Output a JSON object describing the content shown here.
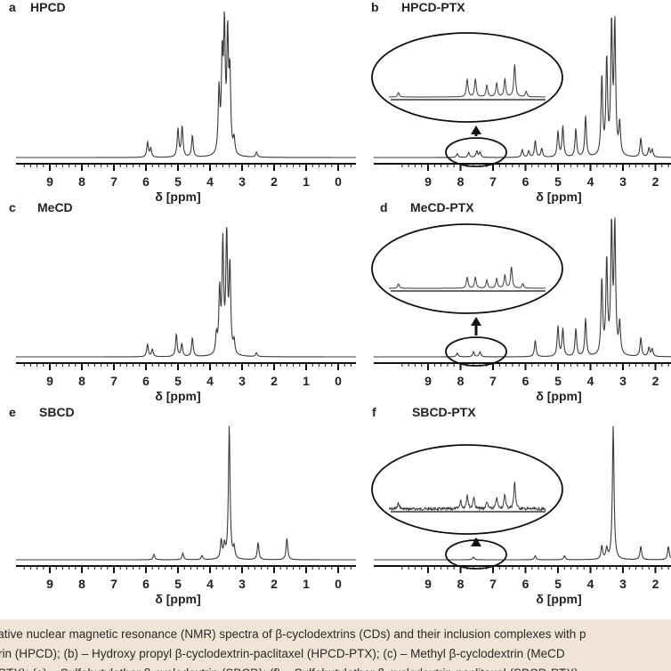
{
  "figure": {
    "line_color": "#3a3a3a",
    "background": "#ffffff",
    "caption_background": "#efe4d6"
  },
  "chart_data": [
    {
      "type": "line",
      "panel": "a",
      "title": "HPCD",
      "xlabel": "δ [ppm]",
      "xlim": [
        10,
        -0.5
      ],
      "x_reversed": true,
      "xticks": [
        "9",
        "8",
        "7",
        "6",
        "5",
        "4",
        "3",
        "2",
        "1",
        "0"
      ],
      "grid": false,
      "peaks": [
        {
          "ppm": 5.95,
          "height": 0.12
        },
        {
          "ppm": 5.85,
          "height": 0.07
        },
        {
          "ppm": 5.0,
          "height": 0.22
        },
        {
          "ppm": 4.87,
          "height": 0.24
        },
        {
          "ppm": 4.55,
          "height": 0.17
        },
        {
          "ppm": 3.72,
          "height": 0.5
        },
        {
          "ppm": 3.62,
          "height": 0.72
        },
        {
          "ppm": 3.55,
          "height": 0.95
        },
        {
          "ppm": 3.45,
          "height": 0.9
        },
        {
          "ppm": 3.38,
          "height": 0.6
        },
        {
          "ppm": 3.25,
          "height": 0.12
        },
        {
          "ppm": 2.55,
          "height": 0.04
        }
      ],
      "inset": false
    },
    {
      "type": "line",
      "panel": "b",
      "title": "HPCD-PTX",
      "xlabel": "δ [ppm]",
      "xlim": [
        10,
        1.5
      ],
      "x_reversed": true,
      "xticks": [
        "9",
        "8",
        "7",
        "6",
        "5",
        "4",
        "3",
        "2"
      ],
      "grid": false,
      "peaks": [
        {
          "ppm": 8.1,
          "height": 0.03
        },
        {
          "ppm": 7.75,
          "height": 0.04
        },
        {
          "ppm": 7.5,
          "height": 0.05
        },
        {
          "ppm": 7.4,
          "height": 0.04
        },
        {
          "ppm": 6.1,
          "height": 0.06
        },
        {
          "ppm": 5.9,
          "height": 0.05
        },
        {
          "ppm": 5.7,
          "height": 0.13
        },
        {
          "ppm": 5.5,
          "height": 0.07
        },
        {
          "ppm": 5.0,
          "height": 0.2
        },
        {
          "ppm": 4.85,
          "height": 0.24
        },
        {
          "ppm": 4.45,
          "height": 0.22
        },
        {
          "ppm": 4.15,
          "height": 0.32
        },
        {
          "ppm": 3.65,
          "height": 0.62
        },
        {
          "ppm": 3.5,
          "height": 0.75
        },
        {
          "ppm": 3.35,
          "height": 1.02
        },
        {
          "ppm": 3.25,
          "height": 1.02
        },
        {
          "ppm": 3.1,
          "height": 0.25
        },
        {
          "ppm": 2.45,
          "height": 0.15
        },
        {
          "ppm": 2.2,
          "height": 0.07
        },
        {
          "ppm": 2.1,
          "height": 0.06
        }
      ],
      "inset": true,
      "inset_peaks": [
        {
          "x": 0.08,
          "height": 0.12
        },
        {
          "x": 0.5,
          "height": 0.48
        },
        {
          "x": 0.55,
          "height": 0.48
        },
        {
          "x": 0.62,
          "height": 0.32
        },
        {
          "x": 0.68,
          "height": 0.38
        },
        {
          "x": 0.73,
          "height": 0.48
        },
        {
          "x": 0.79,
          "height": 0.88
        },
        {
          "x": 0.86,
          "height": 0.15
        }
      ]
    },
    {
      "type": "line",
      "panel": "c",
      "title": "MeCD",
      "xlabel": "δ [ppm]",
      "xlim": [
        10,
        -0.5
      ],
      "x_reversed": true,
      "xticks": [
        "9",
        "8",
        "7",
        "6",
        "5",
        "4",
        "3",
        "2",
        "1",
        "0"
      ],
      "grid": false,
      "peaks": [
        {
          "ppm": 5.95,
          "height": 0.1
        },
        {
          "ppm": 5.8,
          "height": 0.06
        },
        {
          "ppm": 5.05,
          "height": 0.18
        },
        {
          "ppm": 4.88,
          "height": 0.1
        },
        {
          "ppm": 4.55,
          "height": 0.15
        },
        {
          "ppm": 3.8,
          "height": 0.15
        },
        {
          "ppm": 3.7,
          "height": 0.5
        },
        {
          "ppm": 3.6,
          "height": 0.88
        },
        {
          "ppm": 3.48,
          "height": 0.95
        },
        {
          "ppm": 3.38,
          "height": 0.7
        },
        {
          "ppm": 3.25,
          "height": 0.1
        },
        {
          "ppm": 2.55,
          "height": 0.03
        }
      ],
      "inset": false
    },
    {
      "type": "line",
      "panel": "d",
      "title": "MeCD-PTX",
      "xlabel": "δ [ppm]",
      "xlim": [
        10,
        1.5
      ],
      "x_reversed": true,
      "xticks": [
        "9",
        "8",
        "7",
        "6",
        "5",
        "4",
        "3",
        "2"
      ],
      "grid": false,
      "peaks": [
        {
          "ppm": 8.1,
          "height": 0.03
        },
        {
          "ppm": 7.6,
          "height": 0.04
        },
        {
          "ppm": 7.4,
          "height": 0.04
        },
        {
          "ppm": 5.7,
          "height": 0.13
        },
        {
          "ppm": 5.0,
          "height": 0.24
        },
        {
          "ppm": 4.85,
          "height": 0.22
        },
        {
          "ppm": 4.45,
          "height": 0.22
        },
        {
          "ppm": 4.15,
          "height": 0.3
        },
        {
          "ppm": 3.65,
          "height": 0.6
        },
        {
          "ppm": 3.5,
          "height": 0.75
        },
        {
          "ppm": 3.35,
          "height": 1.02
        },
        {
          "ppm": 3.25,
          "height": 1.02
        },
        {
          "ppm": 3.1,
          "height": 0.25
        },
        {
          "ppm": 2.45,
          "height": 0.15
        },
        {
          "ppm": 2.2,
          "height": 0.07
        },
        {
          "ppm": 2.1,
          "height": 0.06
        }
      ],
      "inset": true,
      "inset_peaks": [
        {
          "x": 0.08,
          "height": 0.12
        },
        {
          "x": 0.5,
          "height": 0.3
        },
        {
          "x": 0.55,
          "height": 0.3
        },
        {
          "x": 0.62,
          "height": 0.22
        },
        {
          "x": 0.68,
          "height": 0.26
        },
        {
          "x": 0.73,
          "height": 0.35
        },
        {
          "x": 0.77,
          "height": 0.58
        },
        {
          "x": 0.84,
          "height": 0.12
        }
      ]
    },
    {
      "type": "line",
      "panel": "e",
      "title": "SBCD",
      "xlabel": "δ [ppm]",
      "xlim": [
        10,
        -0.5
      ],
      "x_reversed": true,
      "xticks": [
        "9",
        "8",
        "7",
        "6",
        "5",
        "4",
        "3",
        "2",
        "1",
        "0"
      ],
      "grid": false,
      "peaks": [
        {
          "ppm": 5.75,
          "height": 0.04
        },
        {
          "ppm": 4.85,
          "height": 0.05
        },
        {
          "ppm": 4.25,
          "height": 0.03
        },
        {
          "ppm": 3.65,
          "height": 0.14
        },
        {
          "ppm": 3.55,
          "height": 0.1
        },
        {
          "ppm": 3.4,
          "height": 1.0
        },
        {
          "ppm": 3.25,
          "height": 0.08
        },
        {
          "ppm": 2.5,
          "height": 0.13
        },
        {
          "ppm": 1.6,
          "height": 0.16
        }
      ],
      "inset": false
    },
    {
      "type": "line",
      "panel": "f",
      "title": "SBCD-PTX",
      "xlabel": "δ [ppm]",
      "xlim": [
        10,
        1.5
      ],
      "x_reversed": true,
      "xticks": [
        "9",
        "8",
        "7",
        "6",
        "5",
        "4",
        "3",
        "2"
      ],
      "grid": false,
      "peaks": [
        {
          "ppm": 7.6,
          "height": 0.02
        },
        {
          "ppm": 5.7,
          "height": 0.03
        },
        {
          "ppm": 4.8,
          "height": 0.03
        },
        {
          "ppm": 3.65,
          "height": 0.1
        },
        {
          "ppm": 3.5,
          "height": 0.08
        },
        {
          "ppm": 3.3,
          "height": 1.0
        },
        {
          "ppm": 2.45,
          "height": 0.1
        },
        {
          "ppm": 1.6,
          "height": 0.1
        }
      ],
      "inset": true,
      "inset_peaks": [
        {
          "x": 0.08,
          "height": 0.16
        },
        {
          "x": 0.46,
          "height": 0.22
        },
        {
          "x": 0.5,
          "height": 0.38
        },
        {
          "x": 0.54,
          "height": 0.32
        },
        {
          "x": 0.62,
          "height": 0.2
        },
        {
          "x": 0.68,
          "height": 0.3
        },
        {
          "x": 0.73,
          "height": 0.38
        },
        {
          "x": 0.79,
          "height": 0.72
        }
      ],
      "inset_noise": true
    }
  ],
  "caption": {
    "line1": "ntative nuclear magnetic resonance (NMR) spectra of β-cyclodextrins (CDs) and their inclusion complexes with p",
    "line2": "rin (HPCD); (b) – Hydroxy propyl β-cyclodextrin-paclitaxel (HPCD-PTX);  (c) – Methyl β-cyclodextrin (MeCD",
    "line3": "PTX); (e) – Sulfobutylether β-cyclodextrin (SBCD); (f) – Sulfobutylether β-cyclodextrin-paclitaxel (SBCD-PTX)"
  }
}
